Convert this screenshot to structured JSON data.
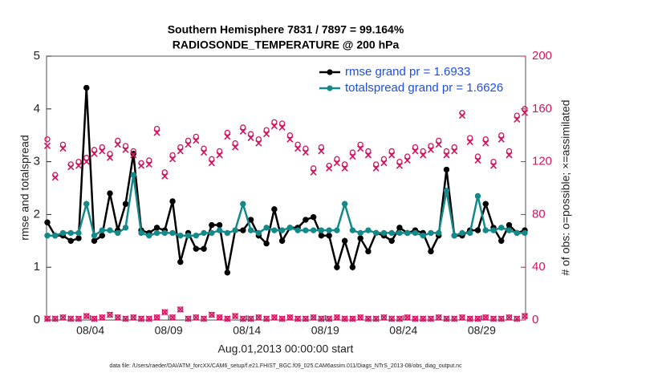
{
  "chart_data": {
    "type": "line",
    "title": "Southern Hemisphere 7831 / 7897 = 99.164%",
    "subtitle": "RADIOSONDE_TEMPERATURE @ 200 hPa",
    "xlabel": "Aug.01,2013 00:00:00 start",
    "ylabel": "rmse and totalspread",
    "y2label": "# of obs: o=possible; ×=assimilated",
    "footnote": "data file: /Users/raeder/DAI/ATM_forcXX/CAM6_setup/f.e21.FHIST_BGC.f09_025.CAM6assim.011/Diags_NTrS_2013-08/obs_diag_output.nc",
    "xlim": [
      0.2,
      30.8
    ],
    "xticks": [
      {
        "value": 3,
        "label": "08/04"
      },
      {
        "value": 8,
        "label": "08/09"
      },
      {
        "value": 13,
        "label": "08/14"
      },
      {
        "value": 18,
        "label": "08/19"
      },
      {
        "value": 23,
        "label": "08/24"
      },
      {
        "value": 28,
        "label": "08/29"
      }
    ],
    "ylim": [
      0,
      5
    ],
    "yticks": [
      0,
      1,
      2,
      3,
      4,
      5
    ],
    "y2lim": [
      0,
      200
    ],
    "y2ticks": [
      0,
      40,
      80,
      120,
      160,
      200
    ],
    "y2color": "#d0145f",
    "legend_text_color": "#1f4fe0",
    "legend": "upper right",
    "x": [
      0.25,
      0.75,
      1.25,
      1.75,
      2.25,
      2.75,
      3.25,
      3.75,
      4.25,
      4.75,
      5.25,
      5.75,
      6.25,
      6.75,
      7.25,
      7.75,
      8.25,
      8.75,
      9.25,
      9.75,
      10.25,
      10.75,
      11.25,
      11.75,
      12.25,
      12.75,
      13.25,
      13.75,
      14.25,
      14.75,
      15.25,
      15.75,
      16.25,
      16.75,
      17.25,
      17.75,
      18.25,
      18.75,
      19.25,
      19.75,
      20.25,
      20.75,
      21.25,
      21.75,
      22.25,
      22.75,
      23.25,
      23.75,
      24.25,
      24.75,
      25.25,
      25.75,
      26.25,
      26.75,
      27.25,
      27.75,
      28.25,
      28.75,
      29.25,
      29.75,
      30.25,
      30.75
    ],
    "series": [
      {
        "name": "rmse grand pr = 1.6933",
        "color": "#000000",
        "marker": "dot",
        "values": [
          1.85,
          1.6,
          1.6,
          1.5,
          1.55,
          4.4,
          1.5,
          1.6,
          2.4,
          1.7,
          2.2,
          3.15,
          1.7,
          1.65,
          1.75,
          1.7,
          2.25,
          1.1,
          1.65,
          1.35,
          1.35,
          1.8,
          1.8,
          0.9,
          1.7,
          1.7,
          1.9,
          1.6,
          1.45,
          2.1,
          1.5,
          1.75,
          1.75,
          1.9,
          1.95,
          1.6,
          1.6,
          1.0,
          1.5,
          1.0,
          1.55,
          1.3,
          1.65,
          1.6,
          1.5,
          1.75,
          1.65,
          1.7,
          1.65,
          1.3,
          1.6,
          2.85,
          1.6,
          1.6,
          1.7,
          1.7,
          2.2,
          1.75,
          1.5,
          1.8,
          1.65,
          1.7
        ]
      },
      {
        "name": "totalspread grand pr = 1.6626",
        "color": "#14898a",
        "marker": "dot",
        "values": [
          1.6,
          1.6,
          1.65,
          1.65,
          1.65,
          2.2,
          1.6,
          1.7,
          1.7,
          1.65,
          1.75,
          2.75,
          1.65,
          1.6,
          1.65,
          1.65,
          1.65,
          1.6,
          1.6,
          1.6,
          1.65,
          1.65,
          1.7,
          1.65,
          1.7,
          2.2,
          1.7,
          1.65,
          1.75,
          1.7,
          1.7,
          1.75,
          1.7,
          1.7,
          1.7,
          1.7,
          1.7,
          1.7,
          2.2,
          1.7,
          1.65,
          1.7,
          1.65,
          1.65,
          1.65,
          1.65,
          1.65,
          1.65,
          1.6,
          1.65,
          1.65,
          2.45,
          1.6,
          1.65,
          1.65,
          2.35,
          1.7,
          1.7,
          1.75,
          1.7,
          1.65,
          1.65
        ]
      },
      {
        "color": "#d0145f",
        "marker": "o",
        "axis": "y2",
        "values": [
          137,
          110,
          133,
          118,
          120,
          123,
          129,
          131,
          126,
          136,
          132,
          128,
          119,
          121,
          145,
          112,
          125,
          131,
          136,
          139,
          130,
          122,
          128,
          142,
          134,
          146,
          141,
          137,
          144,
          150,
          149,
          140,
          133,
          130,
          115,
          131,
          117,
          122,
          118,
          127,
          133,
          128,
          118,
          122,
          128,
          120,
          124,
          131,
          128,
          132,
          136,
          128,
          131,
          157,
          138,
          124,
          137,
          120,
          140,
          128,
          155,
          160
        ]
      },
      {
        "color": "#d0145f",
        "marker": "x",
        "axis": "y2",
        "values": [
          132,
          108,
          130,
          116,
          117,
          120,
          126,
          128,
          123,
          133,
          129,
          125,
          117,
          118,
          142,
          109,
          122,
          128,
          133,
          136,
          127,
          119,
          125,
          139,
          131,
          143,
          138,
          134,
          141,
          147,
          146,
          137,
          130,
          127,
          112,
          128,
          115,
          119,
          115,
          124,
          130,
          125,
          115,
          119,
          125,
          117,
          121,
          128,
          125,
          129,
          133,
          125,
          128,
          155,
          135,
          121,
          134,
          117,
          137,
          125,
          152,
          157
        ]
      },
      {
        "color": "#d0145f",
        "marker": "ox",
        "axis": "y2",
        "values": [
          1,
          1,
          2,
          1,
          1,
          3,
          1,
          2,
          4,
          2,
          1,
          2,
          1,
          1,
          2,
          6,
          2,
          8,
          1,
          2,
          1,
          4,
          2,
          1,
          3,
          1,
          1,
          2,
          1,
          2,
          1,
          2,
          1,
          1,
          2,
          1,
          1,
          2,
          1,
          1,
          2,
          1,
          1,
          2,
          1,
          1,
          2,
          1,
          1,
          1,
          2,
          1,
          1,
          2,
          1,
          1,
          2,
          1,
          1,
          2,
          1,
          3
        ]
      }
    ]
  }
}
